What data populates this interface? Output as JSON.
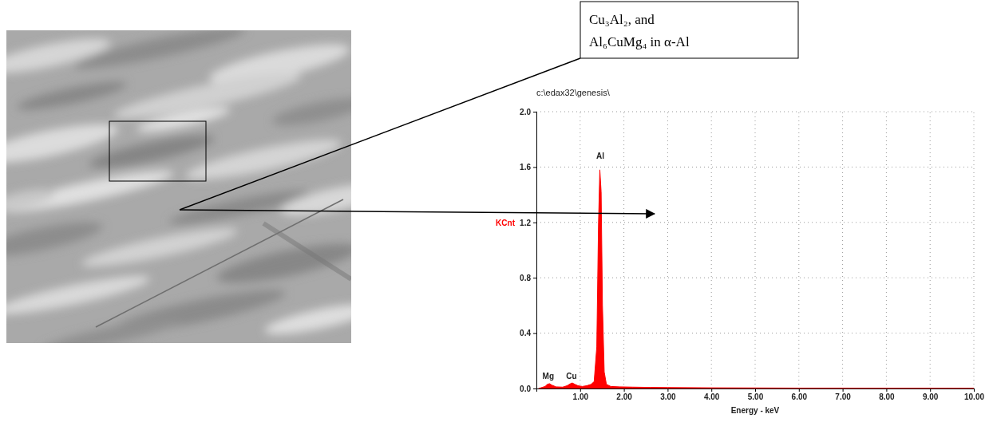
{
  "chart_data": {
    "type": "area",
    "title": "c:\\edax32\\genesis\\",
    "x_label": "Energy - keV",
    "y_label": "KCnt",
    "x": [
      0.05,
      0.1,
      0.2,
      0.25,
      0.3,
      0.35,
      0.45,
      0.6,
      0.7,
      0.78,
      0.82,
      0.88,
      0.95,
      1.05,
      1.15,
      1.25,
      1.32,
      1.38,
      1.42,
      1.45,
      1.48,
      1.51,
      1.55,
      1.6,
      1.7,
      1.9,
      2.2,
      2.6,
      3.0,
      4.0,
      5.0,
      6.0,
      7.0,
      8.0,
      9.0,
      10.0
    ],
    "values": [
      0.0,
      0.005,
      0.015,
      0.03,
      0.035,
      0.025,
      0.012,
      0.01,
      0.02,
      0.035,
      0.04,
      0.03,
      0.02,
      0.015,
      0.02,
      0.03,
      0.05,
      0.3,
      1.2,
      1.58,
      1.42,
      0.6,
      0.12,
      0.03,
      0.015,
      0.012,
      0.01,
      0.008,
      0.007,
      0.005,
      0.004,
      0.003,
      0.003,
      0.002,
      0.002,
      0.001
    ],
    "color": "#ff0000",
    "xlim": [
      0,
      10
    ],
    "xticks": [
      {
        "value": 1,
        "label": "1.00"
      },
      {
        "value": 2,
        "label": "2.00"
      },
      {
        "value": 3,
        "label": "3.00"
      },
      {
        "value": 4,
        "label": "4.00"
      },
      {
        "value": 5,
        "label": "5.00"
      },
      {
        "value": 6,
        "label": "6.00"
      },
      {
        "value": 7,
        "label": "7.00"
      },
      {
        "value": 8,
        "label": "8.00"
      },
      {
        "value": 9,
        "label": "9.00"
      },
      {
        "value": 10,
        "label": "10.00"
      }
    ],
    "ylim": [
      0,
      2
    ],
    "yticks": [
      {
        "value": 0,
        "label": "0.0"
      },
      0.4,
      0.8,
      1.2,
      1.6,
      {
        "value": 2,
        "label": "2.0"
      }
    ],
    "grid": true,
    "annotations": [
      {
        "text": "Mg",
        "x": 0.27,
        "y": 0.07
      },
      {
        "text": "Cu",
        "x": 0.8,
        "y": 0.07
      },
      {
        "text": "Al",
        "x": 1.46,
        "y": 1.66
      }
    ]
  },
  "callout": {
    "lines": [
      "Cu₃Al₂, and",
      "Al₆CuMg₄ in α-Al"
    ]
  }
}
